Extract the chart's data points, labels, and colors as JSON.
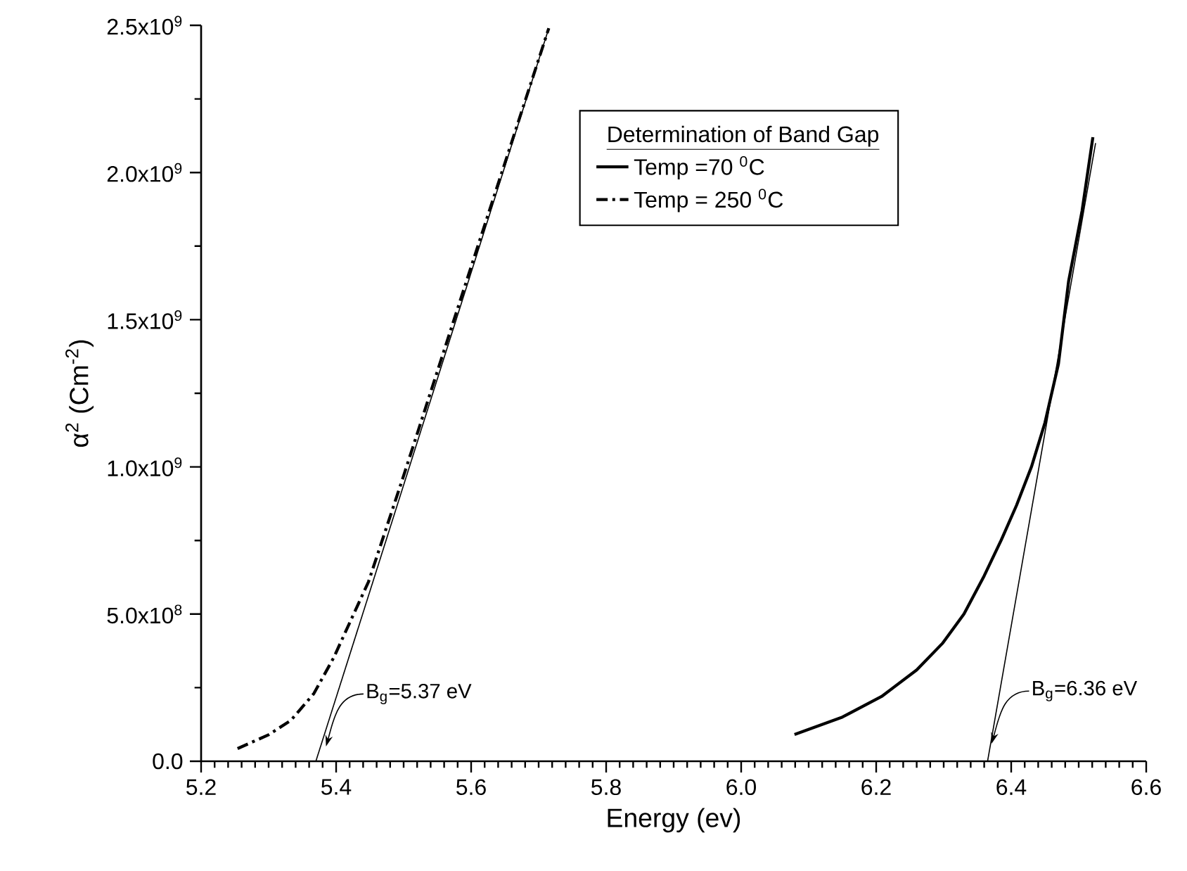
{
  "chart_data": {
    "type": "line",
    "xlabel": "Energy (ev)",
    "ylabel": "α$^{2}$ (Cm$^{-2}$)",
    "legend_title": "Determination of Band Gap",
    "xlim": [
      5.2,
      6.6
    ],
    "xticks": [
      5.2,
      5.4,
      5.6,
      5.8,
      {
        "value": 6.0,
        "label": "6.0"
      },
      6.2,
      6.4,
      6.6
    ],
    "ylim": [
      0,
      2500000000
    ],
    "yticks": [
      {
        "value": 0,
        "label": "0.0"
      },
      {
        "value": 500000000,
        "label": "5.0x10$^{8}$"
      },
      {
        "value": 1000000000,
        "label": "1.0x10$^{9}$"
      },
      {
        "value": 1500000000,
        "label": "1.5x10$^{9}$"
      },
      {
        "value": 2000000000,
        "label": "2.0x10$^{9}$"
      },
      {
        "value": 2500000000,
        "label": "2.5x10$^{9}$"
      }
    ],
    "grid": false,
    "legend": "top right",
    "marker": "none",
    "series": [
      {
        "name": "Temp =70 $^{0}$C",
        "color": "#000000",
        "line_style": "solid",
        "x": [
          6.079,
          6.15,
          6.208,
          6.26,
          6.298,
          6.33,
          6.36,
          6.385,
          6.408,
          6.43,
          6.45,
          6.47,
          6.485,
          6.505,
          6.521
        ],
        "values": [
          91000000,
          150000000,
          220000000,
          310000000,
          400000000,
          500000000,
          630000000,
          750000000,
          870000000,
          1000000000,
          1150000000,
          1350000000,
          1630000000,
          1870000000,
          2120000000
        ]
      },
      {
        "name": "Temp = 250 $^{0}$C",
        "color": "#000000",
        "line_style": "dashdot",
        "x": [
          5.254,
          5.3,
          5.333,
          5.367,
          5.396,
          5.42,
          5.448,
          5.5,
          5.6,
          5.715
        ],
        "values": [
          43000000,
          90000000,
          139000000,
          230000000,
          350000000,
          470000000,
          610000000,
          970000000,
          1680000000,
          2490000000
        ]
      },
      {
        "color": "#000000",
        "line_style": "solid",
        "x": [
          5.37,
          5.715
        ],
        "values": [
          0,
          2490000000
        ]
      },
      {
        "color": "#000000",
        "line_style": "solid",
        "x": [
          6.365,
          6.525
        ],
        "values": [
          0,
          2100000000
        ]
      }
    ],
    "annotations": [
      {
        "text": "B$_{g}$=5.37 eV",
        "x": 5.385,
        "y": 50000000
      },
      {
        "text": "B$_{g}$=6.36 eV",
        "x": 6.371,
        "y": 60000000
      }
    ]
  }
}
